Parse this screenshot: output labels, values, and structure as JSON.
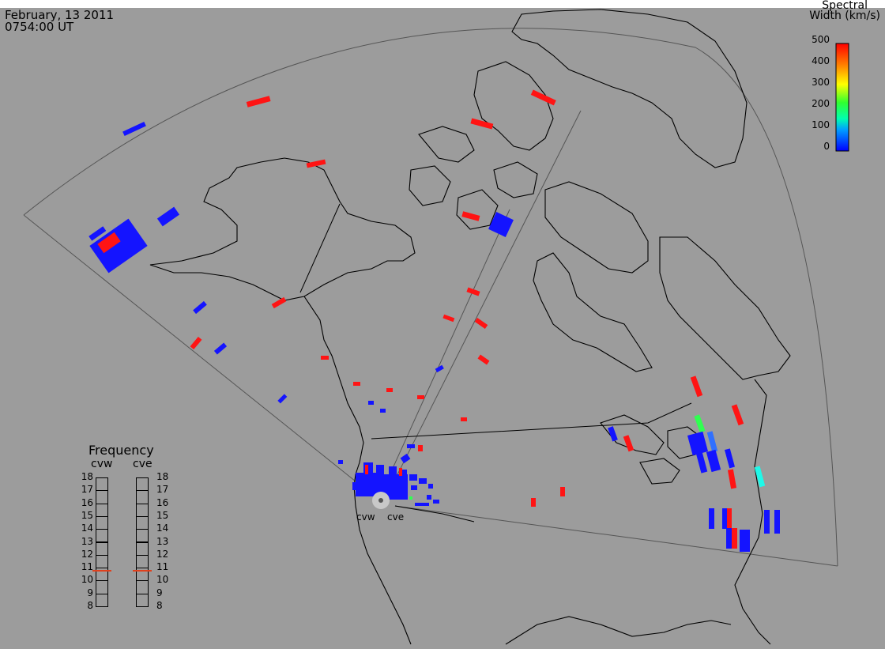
{
  "header": {
    "date": "February, 13 2011",
    "time": "0754:00 UT"
  },
  "colorbar": {
    "title_line1": "Spectral",
    "title_line2": "Width (km/s)",
    "ticks": [
      "500",
      "400",
      "300",
      "200",
      "100",
      "0"
    ]
  },
  "radars": [
    {
      "id": "cvw",
      "label": "cvw"
    },
    {
      "id": "cve",
      "label": "cve"
    }
  ],
  "frequency_panel": {
    "title": "Frequency",
    "col_left": "cvw",
    "col_right": "cve",
    "ticks": [
      "18",
      "17",
      "16",
      "15",
      "14",
      "13",
      "12",
      "11",
      "10",
      "9",
      "8"
    ],
    "cvw_value_mhz": 10.8,
    "cve_value_mhz": 10.8
  },
  "colors": {
    "background": "#9c9c9c",
    "coast": "#000000",
    "fov": "#555555",
    "blue": "#1414ff",
    "red": "#ff1414",
    "green": "#30ff50",
    "cyan": "#20f8e8"
  },
  "echoes": [
    {
      "c": "blue",
      "w": 0
    },
    {
      "c": "red",
      "w": 490
    },
    {
      "c": "green",
      "w": 200
    },
    {
      "c": "cyan",
      "w": 140
    }
  ]
}
